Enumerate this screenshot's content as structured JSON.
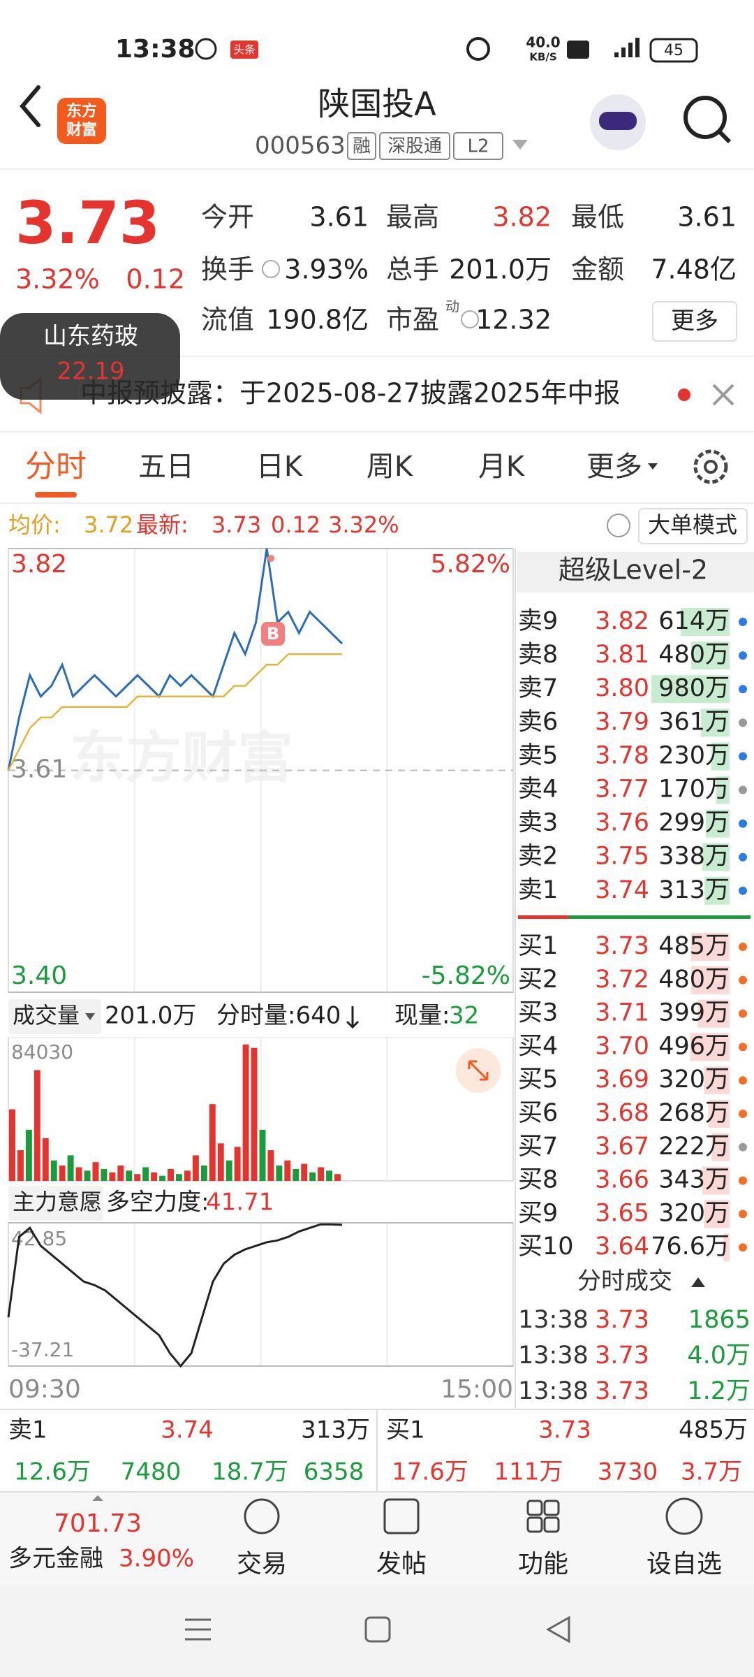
{
  "status_bar": {
    "time": "13:38",
    "badge": "头条",
    "speed": "40.0",
    "speed_unit": "KB/S",
    "battery": "45"
  },
  "header": {
    "logo": [
      "东方",
      "财富"
    ],
    "title": "陕国投A",
    "code": "000563",
    "tags": [
      "融",
      "深股通",
      "L2"
    ]
  },
  "quote": {
    "price": "3.73",
    "change_pct": "3.32%",
    "change": "0.12",
    "fields": [
      {
        "label": "今开",
        "value": "3.61"
      },
      {
        "label": "最高",
        "value": "3.82"
      },
      {
        "label": "最低",
        "value": "3.61"
      },
      {
        "label": "换手",
        "value": "3.93%"
      },
      {
        "label": "总手",
        "value": "201.0万"
      },
      {
        "label": "金额",
        "value": "7.48亿"
      },
      {
        "label": "流值",
        "value": "190.8亿"
      },
      {
        "label": "市盈",
        "value": "12.32"
      }
    ],
    "pe_super": "动",
    "more": "更多"
  },
  "popup": {
    "name": "山东药玻",
    "price": "22.19"
  },
  "notice": "中报预披露：于2025-08-27披露2025年中报",
  "tabs": [
    "分时",
    "五日",
    "日K",
    "周K",
    "月K",
    "更多"
  ],
  "info_row": {
    "avg_label": "均价:",
    "avg": "3.72",
    "latest_label": "最新:",
    "latest": "3.73",
    "change": "0.12",
    "pct": "3.32%",
    "mode": "大单模式"
  },
  "watermark": "东方财富",
  "volume_header": {
    "label": "成交量",
    "total": "201.0万",
    "minute": "分时量:640",
    "now_label": "现量:",
    "now": "32"
  },
  "mf_header": {
    "label": "主力意愿",
    "strength_label": "多空力度:",
    "strength": "41.71"
  },
  "time_axis": [
    "09:30",
    "15:00"
  ],
  "chart_data": [
    {
      "type": "line",
      "ylim": [
        3.4,
        3.82
      ],
      "yticks": [
        3.82,
        3.61,
        {
          "value": 3.4,
          "label": "3.40"
        }
      ],
      "y2lim": [
        -5.82,
        5.82
      ],
      "y2ticks": [
        {
          "value": 5.82,
          "label": "5.82%"
        },
        {
          "value": -5.82,
          "label": "-5.82%"
        }
      ],
      "series": [
        {
          "color": "#2b6cb8",
          "values": [
            3.61,
            3.66,
            3.7,
            3.68,
            3.69,
            3.71,
            3.68,
            3.69,
            3.7,
            3.69,
            3.68,
            3.69,
            3.7,
            3.69,
            3.68,
            3.7,
            3.69,
            3.7,
            3.69,
            3.68,
            3.71,
            3.74,
            3.72,
            3.75,
            3.82,
            3.75,
            3.76,
            3.74,
            3.76,
            3.75,
            3.74,
            3.73
          ]
        },
        {
          "color": "#e3b53c",
          "values": [
            3.61,
            3.63,
            3.65,
            3.66,
            3.66,
            3.67,
            3.67,
            3.67,
            3.67,
            3.67,
            3.67,
            3.67,
            3.68,
            3.68,
            3.68,
            3.68,
            3.68,
            3.68,
            3.68,
            3.68,
            3.68,
            3.69,
            3.69,
            3.7,
            3.71,
            3.71,
            3.72,
            3.72,
            3.72,
            3.72,
            3.72,
            3.72
          ]
        }
      ]
    },
    {
      "type": "bar",
      "ylim": [
        0,
        84030
      ],
      "yticks": [
        84030
      ],
      "values": [
        42000,
        18000,
        30000,
        65000,
        25000,
        12000,
        9000,
        15000,
        8000,
        6000,
        11000,
        7000,
        5000,
        9000,
        6000,
        4000,
        8000,
        5000,
        3000,
        7000,
        4000,
        6000,
        15000,
        9000,
        45000,
        22000,
        12000,
        20000,
        80000,
        78000,
        30000,
        18000,
        9000,
        12000,
        7000,
        10000,
        5000,
        8000,
        6000,
        4000
      ],
      "colors": [
        "#e5342d",
        "#e5342d",
        "#1a9b3c",
        "#e5342d",
        "#e5342d",
        "#1a9b3c",
        "#e5342d",
        "#1a9b3c",
        "#e5342d",
        "#1a9b3c",
        "#e5342d",
        "#1a9b3c",
        "#e5342d",
        "#e5342d",
        "#1a9b3c",
        "#e5342d",
        "#1a9b3c",
        "#e5342d",
        "#1a9b3c",
        "#e5342d",
        "#1a9b3c",
        "#e5342d",
        "#e5342d",
        "#1a9b3c",
        "#e5342d",
        "#e5342d",
        "#1a9b3c",
        "#e5342d",
        "#e5342d",
        "#e5342d",
        "#1a9b3c",
        "#e5342d",
        "#1a9b3c",
        "#e5342d",
        "#1a9b3c",
        "#e5342d",
        "#1a9b3c",
        "#e5342d",
        "#1a9b3c",
        "#e5342d"
      ]
    },
    {
      "type": "line",
      "ylim": [
        -37.21,
        42.85
      ],
      "yticks": [
        42.85,
        -37.21
      ],
      "series": [
        {
          "color": "#222222",
          "values": [
            -10,
            35,
            40,
            30,
            25,
            20,
            15,
            10,
            8,
            5,
            0,
            -5,
            -10,
            -15,
            -20,
            -30,
            -37.21,
            -30,
            -10,
            10,
            20,
            25,
            28,
            30,
            32,
            33,
            35,
            38,
            40,
            42,
            42,
            41.71
          ]
        }
      ]
    }
  ],
  "order_book": {
    "title": "超级Level-2",
    "asks": [
      {
        "label": "卖9",
        "price": "3.82",
        "volume": "614万"
      },
      {
        "label": "卖8",
        "price": "3.81",
        "volume": "480万"
      },
      {
        "label": "卖7",
        "price": "3.80",
        "volume": "980万"
      },
      {
        "label": "卖6",
        "price": "3.79",
        "volume": "361万"
      },
      {
        "label": "卖5",
        "price": "3.78",
        "volume": "230万"
      },
      {
        "label": "卖4",
        "price": "3.77",
        "volume": "170万"
      },
      {
        "label": "卖3",
        "price": "3.76",
        "volume": "299万"
      },
      {
        "label": "卖2",
        "price": "3.75",
        "volume": "338万"
      },
      {
        "label": "卖1",
        "price": "3.74",
        "volume": "313万"
      }
    ],
    "bids": [
      {
        "label": "买1",
        "price": "3.73",
        "volume": "485万"
      },
      {
        "label": "买2",
        "price": "3.72",
        "volume": "480万"
      },
      {
        "label": "买3",
        "price": "3.71",
        "volume": "399万"
      },
      {
        "label": "买4",
        "price": "3.70",
        "volume": "496万"
      },
      {
        "label": "买5",
        "price": "3.69",
        "volume": "320万"
      },
      {
        "label": "买6",
        "price": "3.68",
        "volume": "268万"
      },
      {
        "label": "买7",
        "price": "3.67",
        "volume": "222万"
      },
      {
        "label": "买8",
        "price": "3.66",
        "volume": "343万"
      },
      {
        "label": "买9",
        "price": "3.65",
        "volume": "320万"
      },
      {
        "label": "买10",
        "price": "3.64",
        "volume": "76.6万"
      }
    ],
    "trades_title": "分时成交",
    "trades": [
      [
        "13:38",
        "3.73",
        "1865"
      ],
      [
        "13:38",
        "3.73",
        "4.0万"
      ],
      [
        "13:38",
        "3.73",
        "1.2万"
      ]
    ]
  },
  "bottom_quote": {
    "left": {
      "label": "卖1",
      "price": "3.74",
      "volume": "313万",
      "row": [
        "12.6万",
        "7480",
        "18.7万",
        "6358"
      ]
    },
    "right": {
      "label": "买1",
      "price": "3.73",
      "volume": "485万",
      "row": [
        "17.6万",
        "111万",
        "3730",
        "3.7万"
      ]
    }
  },
  "nav": {
    "index": "701.73",
    "sector": "多元金融",
    "sector_pct": "3.90%",
    "items": [
      "交易",
      "发帖",
      "功能",
      "设自选"
    ]
  }
}
